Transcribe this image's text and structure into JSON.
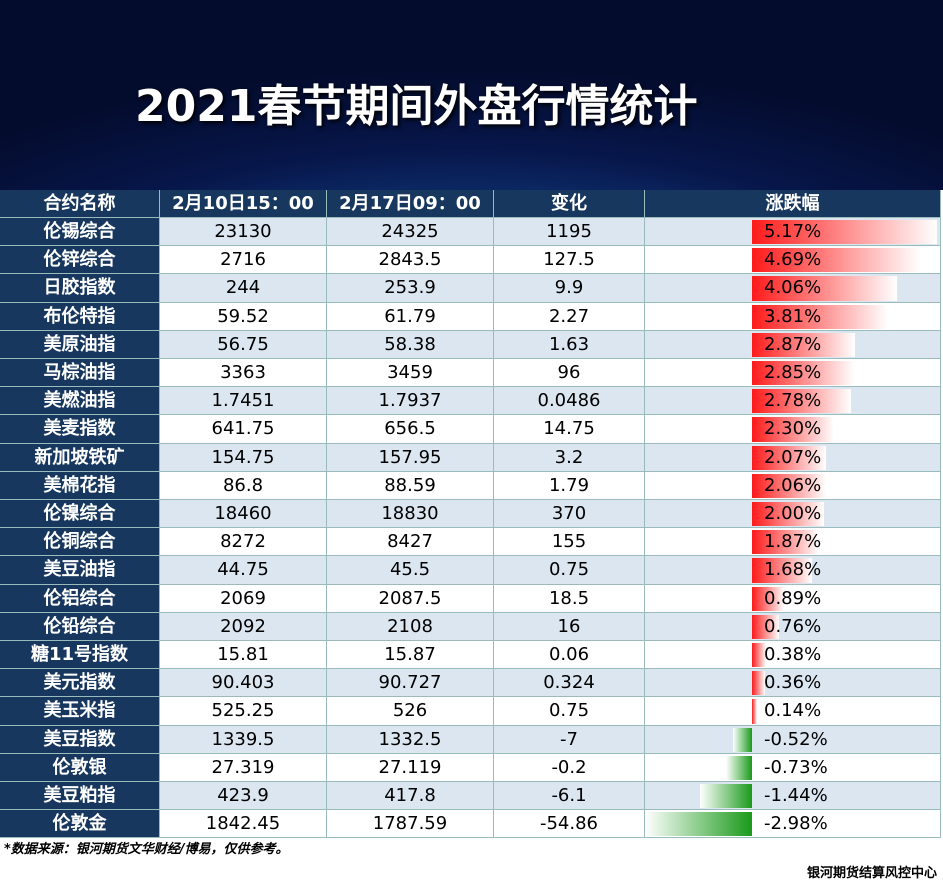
{
  "header": {
    "title": "2021春节期间外盘行情统计"
  },
  "table": {
    "columns": [
      "合约名称",
      "2月10日15：00",
      "2月17日09：00",
      "变化",
      "涨跌幅"
    ],
    "rows": [
      [
        "伦锡综合",
        "23130",
        "24325",
        "1195",
        "5.17%"
      ],
      [
        "伦锌综合",
        "2716",
        "2843.5",
        "127.5",
        "4.69%"
      ],
      [
        "日胶指数",
        "244",
        "253.9",
        "9.9",
        "4.06%"
      ],
      [
        "布伦特指",
        "59.52",
        "61.79",
        "2.27",
        "3.81%"
      ],
      [
        "美原油指",
        "56.75",
        "58.38",
        "1.63",
        "2.87%"
      ],
      [
        "马棕油指",
        "3363",
        "3459",
        "96",
        "2.85%"
      ],
      [
        "美燃油指",
        "1.7451",
        "1.7937",
        "0.0486",
        "2.78%"
      ],
      [
        "美麦指数",
        "641.75",
        "656.5",
        "14.75",
        "2.30%"
      ],
      [
        "新加坡铁矿",
        "154.75",
        "157.95",
        "3.2",
        "2.07%"
      ],
      [
        "美棉花指",
        "86.8",
        "88.59",
        "1.79",
        "2.06%"
      ],
      [
        "伦镍综合",
        "18460",
        "18830",
        "370",
        "2.00%"
      ],
      [
        "伦铜综合",
        "8272",
        "8427",
        "155",
        "1.87%"
      ],
      [
        "美豆油指",
        "44.75",
        "45.5",
        "0.75",
        "1.68%"
      ],
      [
        "伦铝综合",
        "2069",
        "2087.5",
        "18.5",
        "0.89%"
      ],
      [
        "伦铅综合",
        "2092",
        "2108",
        "16",
        "0.76%"
      ],
      [
        "糖11号指数",
        "15.81",
        "15.87",
        "0.06",
        "0.38%"
      ],
      [
        "美元指数",
        "90.403",
        "90.727",
        "0.324",
        "0.36%"
      ],
      [
        "美玉米指",
        "525.25",
        "526",
        "0.75",
        "0.14%"
      ],
      [
        "美豆指数",
        "1339.5",
        "1332.5",
        "-7",
        "-0.52%"
      ],
      [
        "伦敦银",
        "27.319",
        "27.119",
        "-0.2",
        "-0.73%"
      ],
      [
        "美豆粕指",
        "423.9",
        "417.8",
        "-6.1",
        "-1.44%"
      ],
      [
        "伦敦金",
        "1842.45",
        "1787.59",
        "-54.86",
        "-2.98%"
      ]
    ]
  },
  "footer": {
    "source": "*数据来源：银河期货文华财经/博易，仅供参考。",
    "org": "银河期货结算风控中心"
  }
}
